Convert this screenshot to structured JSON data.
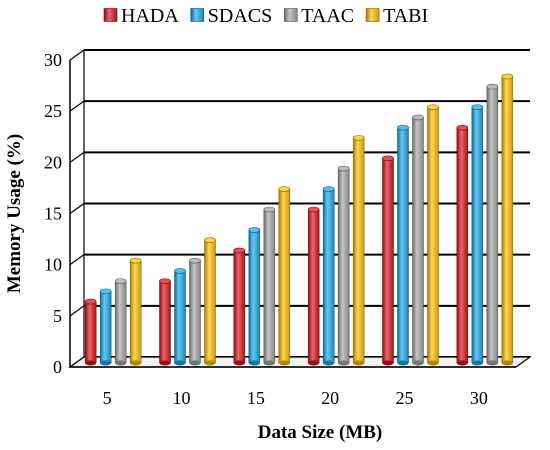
{
  "chart_data": {
    "type": "bar",
    "xlabel": "Data Size (MB)",
    "ylabel": "Memory Usage (%)",
    "categories": [
      "5",
      "10",
      "15",
      "20",
      "25",
      "30"
    ],
    "ylim": [
      0,
      30
    ],
    "yticks": [
      "0",
      "5",
      "10",
      "15",
      "20",
      "25",
      "30"
    ],
    "grid": true,
    "legend_position": "top",
    "series": [
      {
        "name": "HADA",
        "color": "#d9141d",
        "values": [
          6,
          8,
          11,
          15,
          20,
          23
        ]
      },
      {
        "name": "SDACS",
        "color": "#1aa9e8",
        "values": [
          7,
          9,
          13,
          17,
          23,
          25
        ]
      },
      {
        "name": "TAAC",
        "color": "#a6a6a6",
        "values": [
          8,
          10,
          15,
          19,
          24,
          27
        ]
      },
      {
        "name": "TABI",
        "color": "#ffc000",
        "values": [
          10,
          12,
          17,
          22,
          25,
          28
        ]
      }
    ]
  }
}
